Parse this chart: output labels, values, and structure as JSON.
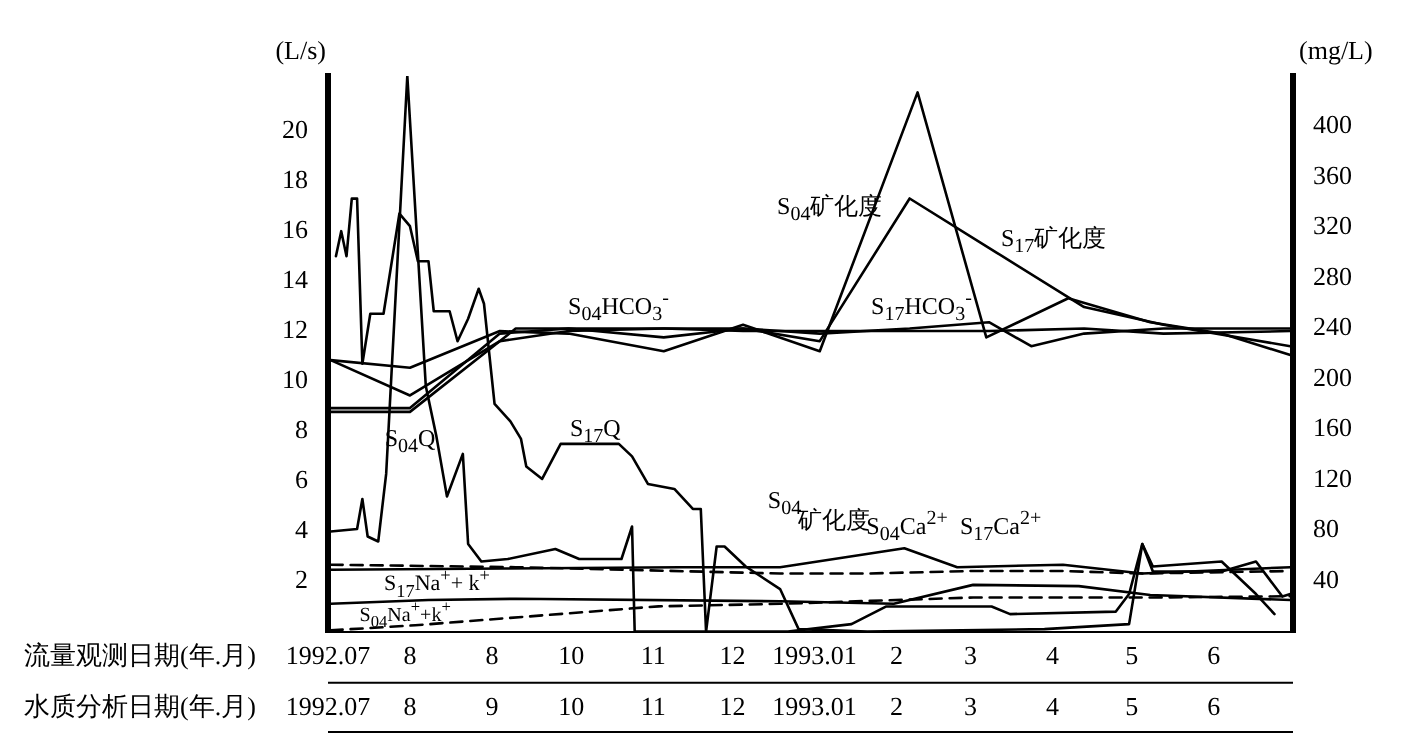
{
  "chart_data": {
    "type": "line",
    "ylabel": "(L/s)",
    "y2label": "(mg/L)",
    "xlabel": "流量观测日期(年.月)",
    "x2label": "水质分析日期(年.月)",
    "xlim": [
      "1992-07-01",
      "1993-07-01"
    ],
    "xticks": [
      {
        "value": "1992-07",
        "label": "1992.07"
      },
      {
        "value": "1992-08",
        "label": "8"
      },
      {
        "value": "1992-09",
        "label": "8"
      },
      {
        "value": "1992-10",
        "label": "10"
      },
      {
        "value": "1992-11",
        "label": "11"
      },
      {
        "value": "1992-12",
        "label": "12"
      },
      {
        "value": "1993-01",
        "label": "1993.01"
      },
      {
        "value": "1993-02",
        "label": "2"
      },
      {
        "value": "1993-03",
        "label": "3"
      },
      {
        "value": "1993-04",
        "label": "4"
      },
      {
        "value": "1993-05",
        "label": "5"
      },
      {
        "value": "1993-06",
        "label": "6"
      }
    ],
    "x2lim": [
      "1992-07-01",
      "1993-07-01"
    ],
    "x2ticks": [
      {
        "value": "1992-07",
        "label": "1992.07"
      },
      {
        "value": "1992-08",
        "label": "8"
      },
      {
        "value": "1992-09",
        "label": "9"
      },
      {
        "value": "1992-10",
        "label": "10"
      },
      {
        "value": "1992-11",
        "label": "11"
      },
      {
        "value": "1992-12",
        "label": "12"
      },
      {
        "value": "1993-01",
        "label": "1993.01"
      },
      {
        "value": "1993-02",
        "label": "2"
      },
      {
        "value": "1993-03",
        "label": "3"
      },
      {
        "value": "1993-04",
        "label": "4"
      },
      {
        "value": "1993-05",
        "label": "5"
      },
      {
        "value": "1993-06",
        "label": "6"
      }
    ],
    "ylim": [
      0,
      22.2
    ],
    "yticks": [
      2,
      4,
      6,
      8,
      10,
      12,
      14,
      16,
      18,
      20
    ],
    "y2lim": [
      0,
      440
    ],
    "y2ticks": [
      40,
      80,
      120,
      160,
      200,
      240,
      280,
      320,
      360,
      400
    ],
    "grid": false,
    "marker": "none",
    "line_style": "solid",
    "series": [
      {
        "color": "#000000",
        "x": [
          "1992-07-02",
          "1992-07-12",
          "1992-07-14",
          "1992-07-16",
          "1992-07-20",
          "1992-07-23",
          "1992-07-31",
          "1992-08-07",
          "1992-08-11",
          "1992-08-15",
          "1992-08-21",
          "1992-08-23",
          "1992-08-28",
          "1992-09-07",
          "1992-09-25",
          "1992-10-04",
          "1992-10-20",
          "1992-10-24",
          "1992-10-25",
          "1992-11-16",
          "1992-12-22",
          "1993-01-15",
          "1993-01-28",
          "1993-03-09",
          "1993-03-16",
          "1993-04-25",
          "1993-04-30",
          "1993-05-05",
          "1993-05-09",
          "1993-06-04",
          "1993-06-17",
          "1993-06-24"
        ],
        "values": [
          4.0,
          4.1,
          5.3,
          3.8,
          3.6,
          6.3,
          22.2,
          9.8,
          7.8,
          5.4,
          7.1,
          3.5,
          2.8,
          2.9,
          3.3,
          2.9,
          2.9,
          4.2,
          0,
          0,
          0,
          0.3,
          1.0,
          1.0,
          0.7,
          0.8,
          1.5,
          3.5,
          2.6,
          2.8,
          1.5,
          0.7
        ]
      },
      {
        "color": "#000000",
        "x": [
          "1992-07-04",
          "1992-07-06",
          "1992-07-08",
          "1992-07-10",
          "1992-07-12",
          "1992-07-14",
          "1992-07-17",
          "1992-07-22",
          "1992-07-28",
          "1992-08-01",
          "1992-08-04",
          "1992-08-08",
          "1992-08-10",
          "1992-08-16",
          "1992-08-19",
          "1992-08-23",
          "1992-08-27",
          "1992-08-29",
          "1992-09-02",
          "1992-09-08",
          "1992-09-12",
          "1992-09-14",
          "1992-09-20",
          "1992-09-27",
          "1992-10-19",
          "1992-10-24",
          "1992-10-30",
          "1992-11-09",
          "1992-11-16",
          "1992-11-19",
          "1992-11-21",
          "1992-11-25",
          "1992-11-28",
          "1992-12-06",
          "1992-12-19",
          "1992-12-26",
          "1993-01-21",
          "1993-03-29",
          "1993-04-30",
          "1993-05-05",
          "1993-05-09",
          "1993-06-04",
          "1993-06-17",
          "1993-06-27",
          "1993-06-30"
        ],
        "values": [
          15.0,
          16.0,
          15.0,
          17.3,
          17.3,
          10.7,
          12.7,
          12.7,
          16.7,
          16.2,
          14.8,
          14.8,
          12.8,
          12.8,
          11.6,
          12.5,
          13.7,
          13.1,
          9.1,
          8.4,
          7.7,
          6.6,
          6.1,
          7.5,
          7.5,
          7.0,
          5.9,
          5.7,
          4.9,
          4.9,
          0,
          3.4,
          3.4,
          2.6,
          1.7,
          0.1,
          0,
          0.1,
          0.3,
          3.5,
          2.4,
          2.4,
          2.8,
          1.4,
          1.5
        ]
      },
      {
        "color": "#000000",
        "axis": "y2",
        "x": [
          "1992-07-02",
          "1992-08-01",
          "1992-09-04",
          "1992-09-30",
          "1992-11-05",
          "1992-12-05",
          "1993-01-03",
          "1993-02-09",
          "1993-03-07",
          "1993-04-07",
          "1993-05-08",
          "1993-06-04",
          "1993-06-30"
        ],
        "values": [
          215,
          209,
          238,
          236,
          222,
          243,
          222,
          427,
          233,
          264,
          245,
          236,
          219
        ]
      },
      {
        "color": "#000000",
        "axis": "y2",
        "x": [
          "1992-07-02",
          "1992-08-01",
          "1992-09-04",
          "1992-09-30",
          "1992-11-05",
          "1992-12-05",
          "1993-01-03",
          "1993-02-06",
          "1993-03-11",
          "1993-04-13",
          "1993-05-13",
          "1993-06-30"
        ],
        "values": [
          177,
          177,
          236,
          240,
          233,
          240,
          230,
          343,
          300,
          257,
          243,
          226
        ]
      },
      {
        "color": "#000000",
        "axis": "y2",
        "x": [
          "1992-07-02",
          "1992-08-01",
          "1992-09-10",
          "1992-11-05",
          "1992-12-05",
          "1993-01-03",
          "1993-02-06",
          "1993-03-08",
          "1993-04-13",
          "1993-05-13",
          "1993-06-30"
        ],
        "values": [
          174,
          174,
          240,
          240,
          238,
          238,
          238,
          238,
          240,
          236,
          238
        ]
      },
      {
        "color": "#000000",
        "axis": "y2",
        "x": [
          "1992-07-02",
          "1992-08-01",
          "1992-09-04",
          "1992-09-30",
          "1992-11-05",
          "1992-12-05",
          "1993-01-03",
          "1993-02-06",
          "1993-03-08",
          "1993-03-24",
          "1993-04-13",
          "1993-05-13",
          "1993-06-30"
        ],
        "values": [
          215,
          187,
          230,
          238,
          240,
          240,
          236,
          240,
          245,
          226,
          236,
          240,
          240
        ]
      },
      {
        "color": "#000000",
        "axis": "y2",
        "x": [
          "1992-07-02",
          "1992-09-06",
          "1992-11-11",
          "1992-12-19",
          "1993-02-04",
          "1993-02-24",
          "1993-04-05",
          "1993-05-05",
          "1993-06-30"
        ],
        "values": [
          49,
          50,
          51,
          51,
          66,
          51,
          53,
          46,
          51
        ]
      },
      {
        "color": "#000000",
        "axis": "y2",
        "line_style": "dashed",
        "x": [
          "1992-07-02",
          "1992-09-10",
          "1992-12-19",
          "1993-01-21",
          "1993-03-02",
          "1993-04-05",
          "1993-05-05",
          "1993-06-30"
        ],
        "values": [
          53,
          51,
          46,
          46,
          48,
          48,
          46,
          48
        ]
      },
      {
        "color": "#000000",
        "axis": "y2",
        "x": [
          "1992-07-02",
          "1992-08-08",
          "1992-09-10",
          "1992-12-19",
          "1993-01-31",
          "1993-03-02",
          "1993-04-11",
          "1993-05-08",
          "1993-06-30"
        ],
        "values": [
          22,
          25,
          26,
          24,
          22,
          37,
          36,
          29,
          25
        ]
      },
      {
        "color": "#000000",
        "axis": "y2",
        "line_style": "dashed",
        "x": [
          "1992-07-02",
          "1992-08-03",
          "1992-11-03",
          "1992-12-19",
          "1993-03-02",
          "1993-05-08",
          "1993-06-30"
        ],
        "values": [
          1,
          5,
          20,
          22,
          27,
          27,
          28
        ]
      }
    ],
    "annotations": [
      "S$_{04}$Q",
      "S$_{17}$Q",
      "S$_{04}$HCO$_{3}$$^{-}$",
      "S$_{17}$HCO$_{3}$$^{-}$",
      "S$_{04}$矿化度",
      "S$_{17}$矿化度",
      "矿化度",
      "S$_{17}$Ca$^{2+}$",
      "S$_{04}$Ca$^{2+}$",
      "S$_{04}$",
      "S$_{17}$Na$^{+}$+ k$^{+}$",
      "S$_{04}$Na$^{+}$+k$^{+}$"
    ]
  }
}
